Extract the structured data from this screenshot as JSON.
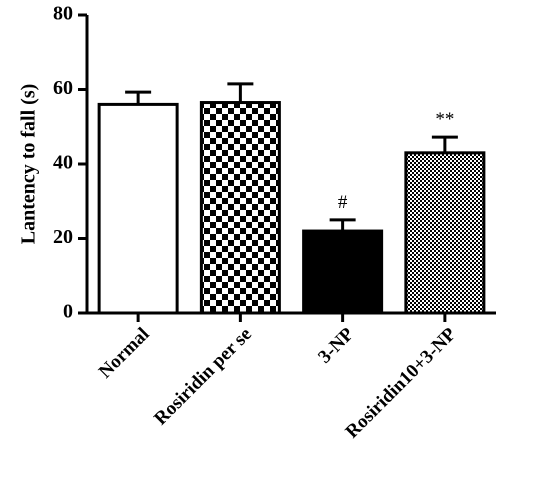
{
  "chart_data": {
    "type": "bar",
    "title": "",
    "xlabel": "",
    "ylabel": "Lantency to fall (s)",
    "ylim": [
      0,
      80
    ],
    "y_ticks": [
      "0",
      "20",
      "40",
      "60",
      "80"
    ],
    "categories": [
      "Normal",
      "Rosiridin per se",
      "3-NP",
      "Rosiridin10+3-NP"
    ],
    "values": [
      56,
      56.5,
      22,
      43
    ],
    "errors": [
      3.3,
      5,
      3,
      4.2
    ],
    "annotations": [
      "",
      "",
      "#",
      "**"
    ],
    "fills": [
      "white",
      "checkerboard",
      "black",
      "fine-checkerboard"
    ],
    "grid": false,
    "legend": "none"
  },
  "colors": {
    "bar_stroke": "#000000",
    "background": "#ffffff"
  }
}
